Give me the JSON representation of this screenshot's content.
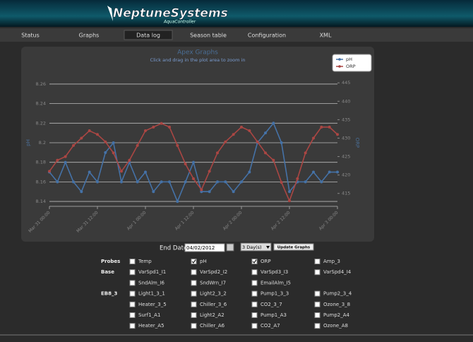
{
  "header": {
    "logo": "NeptuneSystems",
    "tagline": "AquaController"
  },
  "nav": [
    "Status",
    "Graphs",
    "Data log",
    "Season table",
    "Configuration",
    "XML"
  ],
  "nav_selected": "Data log",
  "chart_data": {
    "type": "line",
    "title": "Apex Graphs",
    "subtitle": "Click and drag in the plot area to zoom in",
    "y_label": "pH",
    "y2_label": "ORP",
    "categories": [
      "Mar 31 00:00",
      null,
      null,
      null,
      null,
      null,
      "Mar 31 12:00",
      null,
      null,
      null,
      null,
      null,
      "Apr 1 00:00",
      null,
      null,
      null,
      null,
      null,
      "Apr 1 12:00",
      null,
      null,
      null,
      null,
      null,
      "Apr 2 00:00",
      null,
      null,
      null,
      null,
      null,
      "Apr 2 12:00",
      null,
      null,
      null,
      null,
      null,
      "Apr 3 00:00"
    ],
    "series": [
      {
        "name": "pH",
        "color": "#4572a7",
        "values": [
          8.17,
          8.16,
          8.18,
          8.16,
          8.15,
          8.17,
          8.16,
          8.19,
          8.2,
          8.16,
          8.18,
          8.16,
          8.17,
          8.15,
          8.16,
          8.16,
          8.14,
          8.16,
          8.18,
          8.15,
          8.15,
          8.16,
          8.16,
          8.15,
          8.16,
          8.17,
          8.2,
          8.21,
          8.22,
          8.2,
          8.15,
          8.16,
          8.16,
          8.17,
          8.16,
          8.17,
          8.17
        ]
      },
      {
        "name": "ORP",
        "color": "#aa4643",
        "axis": "y2",
        "values": [
          421,
          424,
          425,
          428,
          430,
          432,
          431,
          429,
          426,
          421,
          424,
          428,
          432,
          433,
          434,
          433,
          428,
          423,
          419,
          416,
          421,
          426,
          429,
          431,
          433,
          432,
          429,
          426,
          424,
          418,
          413,
          419,
          426,
          430,
          433,
          433,
          431
        ]
      }
    ],
    "ylim": [
      8.135,
      8.265
    ],
    "yticks": [
      8.14,
      8.16,
      8.18,
      8.2,
      8.22,
      8.24,
      8.26
    ],
    "y2lim": [
      411.5,
      446
    ],
    "y2ticks": [
      415,
      420,
      425,
      430,
      435,
      440,
      445
    ],
    "grid": true,
    "legend": "top-right"
  },
  "controls": {
    "end_date_label": "End Date",
    "end_date": "04/02/2012",
    "range": "3 Day(s)",
    "button": "Update Graphs"
  },
  "groups": [
    {
      "label": "Probes",
      "rows": [
        [
          {
            "label": "Temp",
            "checked": false
          },
          {
            "label": "pH",
            "checked": true
          },
          {
            "label": "ORP",
            "checked": true
          },
          {
            "label": "Amp_3",
            "checked": false
          }
        ]
      ]
    },
    {
      "label": "Base",
      "rows": [
        [
          {
            "label": "VarSpd1_I1",
            "checked": false
          },
          {
            "label": "VarSpd2_I2",
            "checked": false
          },
          {
            "label": "VarSpd3_I3",
            "checked": false
          },
          {
            "label": "VarSpd4_I4",
            "checked": false
          }
        ],
        [
          {
            "label": "SndAlm_I6",
            "checked": false
          },
          {
            "label": "SndWrn_I7",
            "checked": false
          },
          {
            "label": "EmailAlm_I5",
            "checked": false
          }
        ]
      ]
    },
    {
      "label": "EB8_3",
      "rows": [
        [
          {
            "label": "Light1_3_1",
            "checked": false
          },
          {
            "label": "Light2_3_2",
            "checked": false
          },
          {
            "label": "Pump1_3_3",
            "checked": false
          },
          {
            "label": "Pump2_3_4",
            "checked": false
          }
        ],
        [
          {
            "label": "Heater_3_5",
            "checked": false
          },
          {
            "label": "Chiller_3_6",
            "checked": false
          },
          {
            "label": "CO2_3_7",
            "checked": false
          },
          {
            "label": "Ozone_3_8",
            "checked": false
          }
        ],
        [
          {
            "label": "Surf1_A1",
            "checked": false
          },
          {
            "label": "Light2_A2",
            "checked": false
          },
          {
            "label": "Pump1_A3",
            "checked": false
          },
          {
            "label": "Pump2_A4",
            "checked": false
          }
        ],
        [
          {
            "label": "Heater_A5",
            "checked": false
          },
          {
            "label": "Chiller_A6",
            "checked": false
          },
          {
            "label": "CO2_A7",
            "checked": false
          },
          {
            "label": "Ozone_A8",
            "checked": false
          }
        ]
      ]
    }
  ]
}
